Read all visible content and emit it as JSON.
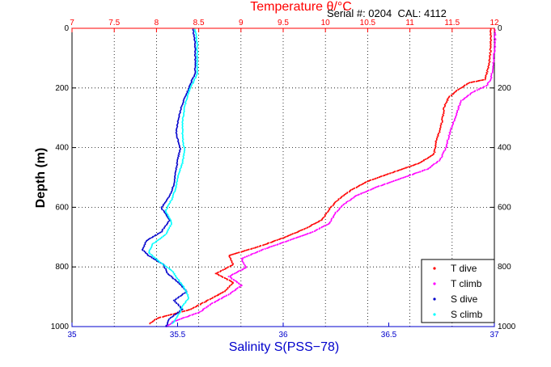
{
  "colors": {
    "temperature_axis": "#ff0000",
    "salinity_axis": "#0000cc",
    "t_dive": "#ff0000",
    "t_climb": "#ff00ff",
    "s_dive": "#0000cc",
    "s_climb": "#00ffff",
    "grid": "#000000"
  },
  "chart_data": {
    "type": "line",
    "title": "Temperature θ/°C",
    "annotation": "Serial #: 0204  CAL: 4112",
    "ylabel": "Depth (m)",
    "xlabel_bottom": "Salinity S(PSS−78)",
    "xlabel_top": "Temperature θ/°C",
    "y_reversed": true,
    "ylim": [
      0,
      1000
    ],
    "y_ticks": [
      "0",
      "200",
      "400",
      "600",
      "800",
      "1000"
    ],
    "x_top_lim": [
      7,
      12
    ],
    "x_top_ticks": [
      "7",
      "7.5",
      "8",
      "8.5",
      "9",
      "9.5",
      "10",
      "10.5",
      "11",
      "11.5",
      "12"
    ],
    "x_bottom_lim": [
      35,
      37
    ],
    "x_bottom_ticks": [
      "35",
      "35.5",
      "36",
      "36.5",
      "37"
    ],
    "grid": true,
    "legend_position": "bottom-right",
    "series": [
      {
        "name": "T dive",
        "axis": "top",
        "marker": "dot",
        "depth": [
          0,
          60,
          120,
          170,
          180,
          200,
          230,
          260,
          300,
          340,
          380,
          420,
          450,
          480,
          510,
          540,
          570,
          600,
          620,
          640,
          670,
          700,
          730,
          760,
          790,
          820,
          850,
          880,
          910,
          940,
          970,
          990
        ],
        "values": [
          11.95,
          11.95,
          11.93,
          11.88,
          11.7,
          11.58,
          11.45,
          11.4,
          11.38,
          11.35,
          11.3,
          11.28,
          11.1,
          10.8,
          10.5,
          10.3,
          10.15,
          10.05,
          10.0,
          9.95,
          9.75,
          9.5,
          9.2,
          8.85,
          8.9,
          8.7,
          8.9,
          8.8,
          8.6,
          8.4,
          8.0,
          7.9
        ]
      },
      {
        "name": "T climb",
        "axis": "top",
        "marker": "dot",
        "depth": [
          0,
          60,
          120,
          170,
          190,
          210,
          240,
          280,
          320,
          360,
          400,
          440,
          470,
          500,
          530,
          560,
          590,
          620,
          650,
          680,
          710,
          740,
          770,
          800,
          830,
          860,
          890,
          920,
          950,
          980,
          1000
        ],
        "values": [
          12.0,
          12.0,
          11.98,
          11.95,
          11.9,
          11.75,
          11.6,
          11.55,
          11.5,
          11.45,
          11.42,
          11.35,
          11.2,
          10.9,
          10.6,
          10.35,
          10.2,
          10.1,
          10.05,
          9.85,
          9.55,
          9.25,
          9.0,
          9.05,
          8.85,
          9.0,
          8.85,
          8.65,
          8.5,
          8.2,
          8.1
        ]
      },
      {
        "name": "S dive",
        "axis": "bottom",
        "marker": "dot",
        "depth": [
          0,
          50,
          100,
          150,
          180,
          200,
          250,
          300,
          350,
          400,
          430,
          470,
          520,
          560,
          600,
          640,
          680,
          710,
          740,
          760,
          790,
          820,
          850,
          880,
          910,
          940,
          970,
          1000
        ],
        "values": [
          35.57,
          35.58,
          35.58,
          35.58,
          35.56,
          35.55,
          35.52,
          35.5,
          35.49,
          35.51,
          35.5,
          35.49,
          35.48,
          35.46,
          35.42,
          35.46,
          35.42,
          35.35,
          35.33,
          35.36,
          35.43,
          35.45,
          35.5,
          35.54,
          35.48,
          35.52,
          35.46,
          35.44
        ]
      },
      {
        "name": "S climb",
        "axis": "bottom",
        "marker": "dot",
        "depth": [
          0,
          50,
          100,
          150,
          180,
          210,
          260,
          310,
          360,
          410,
          450,
          490,
          530,
          570,
          610,
          650,
          690,
          720,
          750,
          780,
          810,
          840,
          870,
          900,
          930,
          960,
          990
        ],
        "values": [
          35.58,
          35.59,
          35.59,
          35.59,
          35.57,
          35.55,
          35.53,
          35.52,
          35.52,
          35.53,
          35.52,
          35.5,
          35.49,
          35.47,
          35.44,
          35.47,
          35.44,
          35.38,
          35.36,
          35.41,
          35.47,
          35.5,
          35.53,
          35.55,
          35.52,
          35.5,
          35.47
        ]
      }
    ]
  }
}
